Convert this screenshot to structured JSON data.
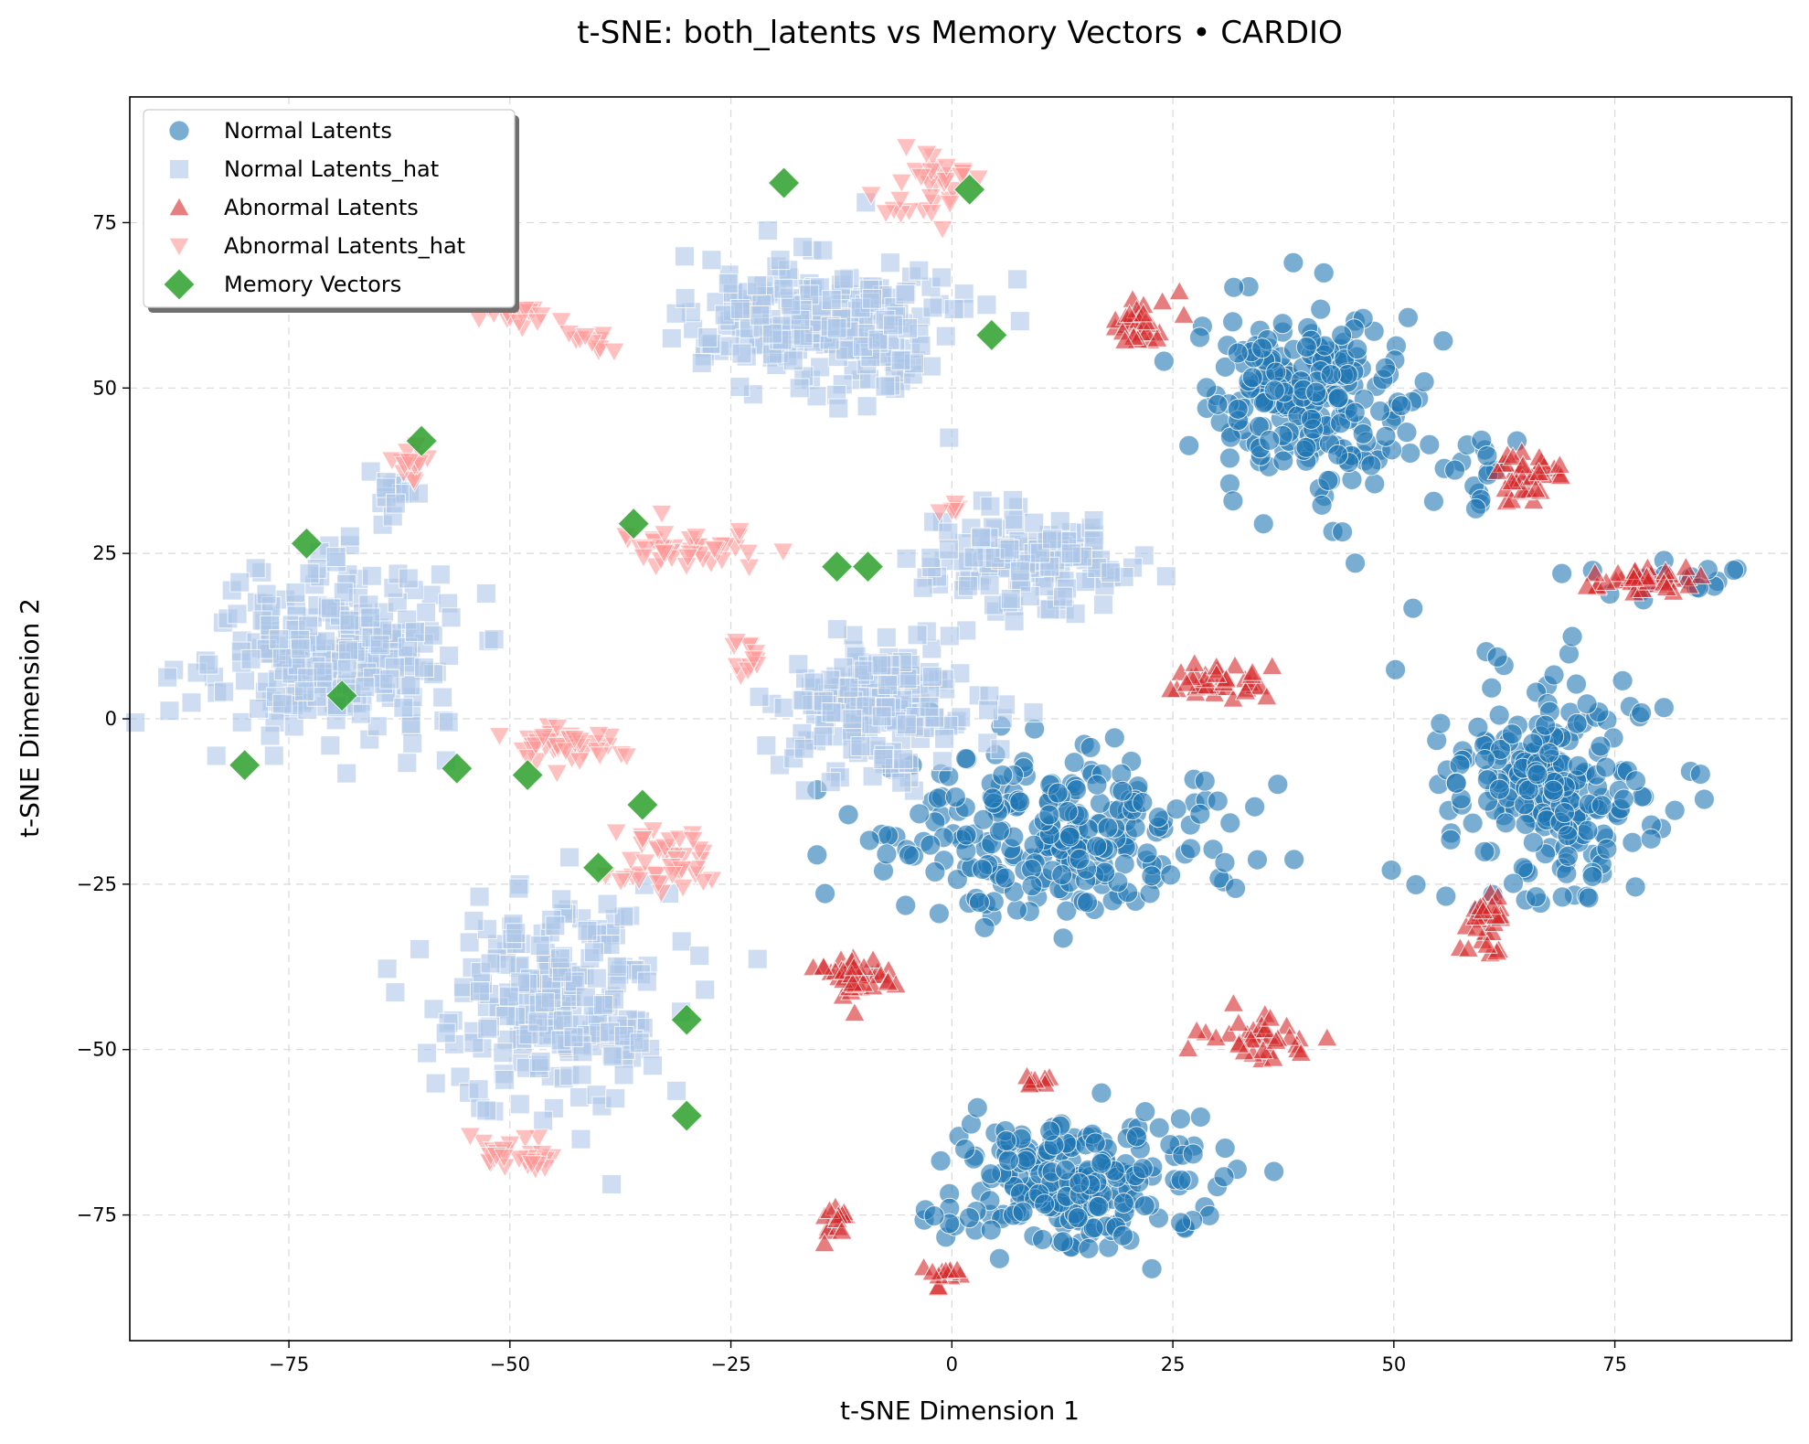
{
  "chart_data": {
    "type": "scatter",
    "title": "t-SNE: both_latents vs Memory Vectors • CARDIO",
    "xlabel": "t-SNE Dimension 1",
    "ylabel": "t-SNE Dimension 2",
    "xlim": [
      -93,
      95
    ],
    "ylim": [
      -94,
      94
    ],
    "xticks": [
      -75,
      -50,
      -25,
      0,
      25,
      50,
      75
    ],
    "yticks": [
      -75,
      -50,
      -25,
      0,
      25,
      50,
      75
    ],
    "xtick_labels": [
      "−75",
      "−50",
      "−25",
      "0",
      "25",
      "50",
      "75"
    ],
    "ytick_labels": [
      "−75",
      "−50",
      "−25",
      "0",
      "25",
      "50",
      "75"
    ],
    "grid": true,
    "legend_position": "top-left",
    "series": [
      {
        "name": "Normal Latents",
        "marker": "circle",
        "color": "#1f77b4",
        "opacity": 0.6,
        "clusters": [
          {
            "center": [
              40,
              48
            ],
            "spread": [
              8,
              9
            ],
            "count": 230
          },
          {
            "center": [
              12,
              -18
            ],
            "spread": [
              12,
              8
            ],
            "count": 260
          },
          {
            "center": [
              68,
              -10
            ],
            "spread": [
              9,
              11
            ],
            "count": 240
          },
          {
            "center": [
              14,
              -70
            ],
            "spread": [
              10,
              7
            ],
            "count": 230
          },
          {
            "center": [
              60,
              37
            ],
            "spread": [
              3,
              4
            ],
            "count": 15
          },
          {
            "center": [
              82,
              21
            ],
            "spread": [
              5,
              1.5
            ],
            "count": 20
          }
        ]
      },
      {
        "name": "Normal Latents_hat",
        "marker": "square",
        "color": "#aec7e8",
        "opacity": 0.6,
        "clusters": [
          {
            "center": [
              -70,
              10
            ],
            "spread": [
              9,
              9
            ],
            "count": 250
          },
          {
            "center": [
              -15,
              60
            ],
            "spread": [
              10,
              7
            ],
            "count": 230
          },
          {
            "center": [
              -45,
              -42
            ],
            "spread": [
              9,
              11
            ],
            "count": 230
          },
          {
            "center": [
              -8,
              2
            ],
            "spread": [
              8,
              7
            ],
            "count": 180
          },
          {
            "center": [
              8,
              24
            ],
            "spread": [
              7,
              5
            ],
            "count": 140
          },
          {
            "center": [
              -63,
              34
            ],
            "spread": [
              2,
              3
            ],
            "count": 15
          }
        ]
      },
      {
        "name": "Abnormal Latents",
        "marker": "triangle-up",
        "color": "#d62728",
        "opacity": 0.6,
        "clusters": [
          {
            "center": [
              21,
              60
            ],
            "spread": [
              2,
              3
            ],
            "count": 30
          },
          {
            "center": [
              65,
              37
            ],
            "spread": [
              2.5,
              3
            ],
            "count": 35
          },
          {
            "center": [
              78,
              21
            ],
            "spread": [
              4,
              1.5
            ],
            "count": 35
          },
          {
            "center": [
              31,
              6
            ],
            "spread": [
              4,
              2
            ],
            "count": 35
          },
          {
            "center": [
              -11,
              -38
            ],
            "spread": [
              3,
              3
            ],
            "count": 40
          },
          {
            "center": [
              35,
              -48
            ],
            "spread": [
              4,
              2
            ],
            "count": 35
          },
          {
            "center": [
              60,
              -31
            ],
            "spread": [
              2,
              3
            ],
            "count": 30
          },
          {
            "center": [
              -13,
              -76
            ],
            "spread": [
              1.5,
              2
            ],
            "count": 15
          },
          {
            "center": [
              -1,
              -84
            ],
            "spread": [
              2,
              1.5
            ],
            "count": 12
          },
          {
            "center": [
              10,
              -55
            ],
            "spread": [
              1.5,
              1
            ],
            "count": 8
          }
        ]
      },
      {
        "name": "Abnormal Latents_hat",
        "marker": "triangle-down",
        "color": "#ff9896",
        "opacity": 0.6,
        "clusters": [
          {
            "center": [
              -2,
              80
            ],
            "spread": [
              4,
              4
            ],
            "count": 35
          },
          {
            "center": [
              -49,
              61
            ],
            "spread": [
              3,
              1
            ],
            "count": 15
          },
          {
            "center": [
              -61,
              38
            ],
            "spread": [
              2,
              2
            ],
            "count": 15
          },
          {
            "center": [
              -30,
              26
            ],
            "spread": [
              6,
              2
            ],
            "count": 40
          },
          {
            "center": [
              -44,
              -4
            ],
            "spread": [
              4,
              2
            ],
            "count": 45
          },
          {
            "center": [
              -33,
              -21
            ],
            "spread": [
              4,
              3
            ],
            "count": 45
          },
          {
            "center": [
              -49,
              -66
            ],
            "spread": [
              3,
              1.5
            ],
            "count": 30
          },
          {
            "center": [
              -23,
              10
            ],
            "spread": [
              1,
              3
            ],
            "count": 12
          },
          {
            "center": [
              0,
              32
            ],
            "spread": [
              1,
              1
            ],
            "count": 6
          },
          {
            "center": [
              -40,
              57
            ],
            "spread": [
              2,
              1.5
            ],
            "count": 10
          }
        ]
      },
      {
        "name": "Memory Vectors",
        "marker": "diamond",
        "color": "#2ca02c",
        "opacity": 0.85,
        "x": [
          -19,
          2,
          4.5,
          -60,
          -73,
          -36,
          -13,
          -9.5,
          -69,
          -80,
          -56,
          -48,
          -35,
          -40,
          -30,
          -30
        ],
        "y": [
          81,
          80,
          58,
          42,
          26.5,
          29.5,
          23,
          23,
          3.5,
          -7,
          -7.5,
          -8.5,
          -13,
          -22.5,
          -45.5,
          -60
        ]
      }
    ]
  }
}
